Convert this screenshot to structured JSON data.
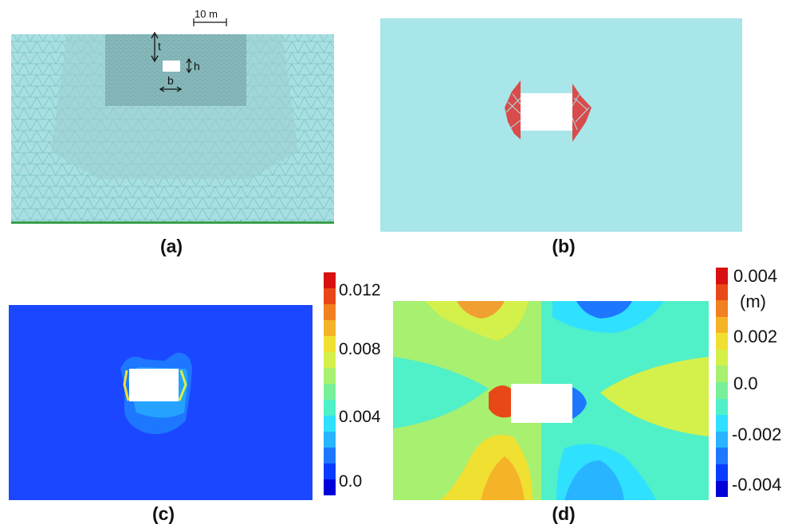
{
  "panels": {
    "a": {
      "caption": "(a)",
      "scale_label": "10 m",
      "label_t": "t",
      "label_h": "h",
      "label_b": "b"
    },
    "b": {
      "caption": "(b)"
    },
    "c": {
      "caption": "(c)",
      "colorbar_ticks": [
        "0.012",
        "0.008",
        "0.004",
        "0.0"
      ]
    },
    "d": {
      "caption": "(d)",
      "colorbar_ticks": [
        "0.004",
        "(m)",
        "0.002",
        "0.0",
        "-0.002",
        "-0.004"
      ]
    }
  },
  "colors": {
    "mesh_fill": "#a8e0e2",
    "mesh_line": "#6fb8bc",
    "plastic_points": "#e03030",
    "field_blue": "#1a47ff",
    "opening": "#ffffff"
  },
  "colorbar_palette": [
    "#0000d8",
    "#0a3cff",
    "#1e78ff",
    "#28b4ff",
    "#30e0ff",
    "#50f0c8",
    "#78f09a",
    "#a8f070",
    "#d4f04a",
    "#f0e032",
    "#f5b428",
    "#f08020",
    "#e84818",
    "#d81010"
  ]
}
